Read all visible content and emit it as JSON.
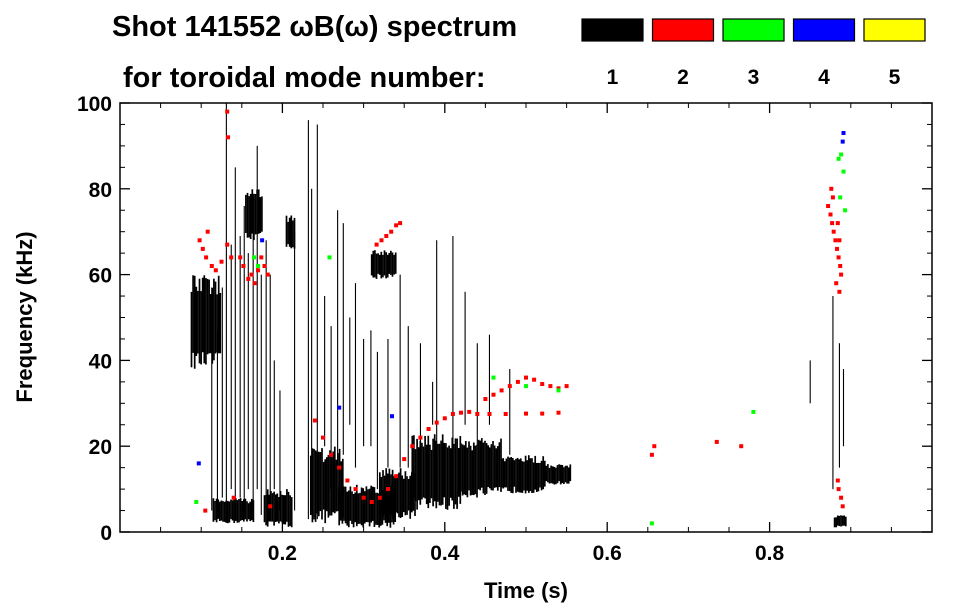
{
  "chart_data": {
    "type": "scatter",
    "title_line1": "Shot 141552 ωB(ω) spectrum",
    "title_line2": "for toroidal mode number:",
    "xlabel": "Time (s)",
    "ylabel": "Frequency (kHz)",
    "xlim": [
      0.0,
      1.0
    ],
    "ylim": [
      0,
      100
    ],
    "x_ticks": [
      0.2,
      0.4,
      0.6,
      0.8
    ],
    "x_tick_labels": [
      "0.2",
      "0.4",
      "0.6",
      "0.8"
    ],
    "y_ticks": [
      0,
      20,
      40,
      60,
      80,
      100
    ],
    "y_tick_labels": [
      "0",
      "20",
      "40",
      "60",
      "80",
      "100"
    ],
    "legend_position": "top-right",
    "legend": [
      {
        "label": "1",
        "color": "#000000"
      },
      {
        "label": "2",
        "color": "#ff0000"
      },
      {
        "label": "3",
        "color": "#00ff00"
      },
      {
        "label": "4",
        "color": "#0000ff"
      },
      {
        "label": "5",
        "color": "#ffff00"
      }
    ],
    "series": [
      {
        "name": "n=1",
        "color": "#000000",
        "blobs": [
          {
            "t0": 0.088,
            "t1": 0.125,
            "f0": 38,
            "f1": 60
          },
          {
            "t0": 0.115,
            "t1": 0.165,
            "f0": 2,
            "f1": 8
          },
          {
            "t0": 0.155,
            "t1": 0.175,
            "f0": 68,
            "f1": 80
          },
          {
            "t0": 0.205,
            "t1": 0.215,
            "f0": 66,
            "f1": 74
          },
          {
            "t0": 0.178,
            "t1": 0.212,
            "f0": 1,
            "f1": 10
          },
          {
            "t0": 0.235,
            "t1": 0.275,
            "f0": 2,
            "f1": 20
          },
          {
            "t0": 0.27,
            "t1": 0.34,
            "f0": 1,
            "f1": 11
          },
          {
            "t0": 0.32,
            "t1": 0.365,
            "f0": 3,
            "f1": 15
          },
          {
            "t0": 0.36,
            "t1": 0.42,
            "f0": 5,
            "f1": 23
          },
          {
            "t0": 0.42,
            "t1": 0.47,
            "f0": 8,
            "f1": 22
          },
          {
            "t0": 0.47,
            "t1": 0.525,
            "f0": 9,
            "f1": 18
          },
          {
            "t0": 0.525,
            "t1": 0.555,
            "f0": 11,
            "f1": 16
          },
          {
            "t0": 0.31,
            "t1": 0.34,
            "f0": 59,
            "f1": 66
          },
          {
            "t0": 0.88,
            "t1": 0.895,
            "f0": 1,
            "f1": 4
          }
        ],
        "stripes": [
          {
            "t": 0.113,
            "f0": 5,
            "f1": 57
          },
          {
            "t": 0.12,
            "f0": 3,
            "f1": 47
          },
          {
            "t": 0.126,
            "f0": 8,
            "f1": 57
          },
          {
            "t": 0.131,
            "f0": 5,
            "f1": 100
          },
          {
            "t": 0.137,
            "f0": 10,
            "f1": 67
          },
          {
            "t": 0.142,
            "f0": 5,
            "f1": 85
          },
          {
            "t": 0.148,
            "f0": 8,
            "f1": 69
          },
          {
            "t": 0.153,
            "f0": 3,
            "f1": 76
          },
          {
            "t": 0.158,
            "f0": 10,
            "f1": 65
          },
          {
            "t": 0.164,
            "f0": 5,
            "f1": 78
          },
          {
            "t": 0.169,
            "f0": 10,
            "f1": 90
          },
          {
            "t": 0.174,
            "f0": 4,
            "f1": 60
          },
          {
            "t": 0.18,
            "f0": 8,
            "f1": 68
          },
          {
            "t": 0.185,
            "f0": 3,
            "f1": 60
          },
          {
            "t": 0.19,
            "f0": 10,
            "f1": 40
          },
          {
            "t": 0.197,
            "f0": 5,
            "f1": 33
          },
          {
            "t": 0.215,
            "f0": 5,
            "f1": 70
          },
          {
            "t": 0.232,
            "f0": 3,
            "f1": 96
          },
          {
            "t": 0.236,
            "f0": 5,
            "f1": 80
          },
          {
            "t": 0.243,
            "f0": 3,
            "f1": 95
          },
          {
            "t": 0.252,
            "f0": 20,
            "f1": 55
          },
          {
            "t": 0.26,
            "f0": 10,
            "f1": 48
          },
          {
            "t": 0.268,
            "f0": 15,
            "f1": 75
          },
          {
            "t": 0.275,
            "f0": 18,
            "f1": 72
          },
          {
            "t": 0.283,
            "f0": 25,
            "f1": 50
          },
          {
            "t": 0.29,
            "f0": 15,
            "f1": 58
          },
          {
            "t": 0.3,
            "f0": 20,
            "f1": 45
          },
          {
            "t": 0.309,
            "f0": 20,
            "f1": 47
          },
          {
            "t": 0.317,
            "f0": 10,
            "f1": 42
          },
          {
            "t": 0.33,
            "f0": 15,
            "f1": 45
          },
          {
            "t": 0.345,
            "f0": 15,
            "f1": 60
          },
          {
            "t": 0.355,
            "f0": 15,
            "f1": 48
          },
          {
            "t": 0.37,
            "f0": 20,
            "f1": 44
          },
          {
            "t": 0.385,
            "f0": 25,
            "f1": 35
          },
          {
            "t": 0.39,
            "f0": 20,
            "f1": 68
          },
          {
            "t": 0.41,
            "f0": 20,
            "f1": 69
          },
          {
            "t": 0.425,
            "f0": 25,
            "f1": 56
          },
          {
            "t": 0.44,
            "f0": 20,
            "f1": 44
          },
          {
            "t": 0.455,
            "f0": 25,
            "f1": 46
          },
          {
            "t": 0.48,
            "f0": 18,
            "f1": 38
          },
          {
            "t": 0.85,
            "f0": 30,
            "f1": 40
          },
          {
            "t": 0.878,
            "f0": 10,
            "f1": 55
          },
          {
            "t": 0.886,
            "f0": 15,
            "f1": 44
          },
          {
            "t": 0.891,
            "f0": 20,
            "f1": 38
          }
        ]
      },
      {
        "name": "n=2",
        "color": "#ff0000",
        "points": [
          [
            0.098,
            68
          ],
          [
            0.102,
            66
          ],
          [
            0.106,
            64
          ],
          [
            0.108,
            70
          ],
          [
            0.113,
            62
          ],
          [
            0.118,
            61
          ],
          [
            0.125,
            63
          ],
          [
            0.132,
            67
          ],
          [
            0.137,
            64
          ],
          [
            0.132,
            98
          ],
          [
            0.133,
            92
          ],
          [
            0.148,
            64
          ],
          [
            0.152,
            62
          ],
          [
            0.158,
            59
          ],
          [
            0.162,
            60
          ],
          [
            0.166,
            58
          ],
          [
            0.17,
            61
          ],
          [
            0.174,
            64
          ],
          [
            0.178,
            62
          ],
          [
            0.182,
            60
          ],
          [
            0.105,
            5
          ],
          [
            0.14,
            8
          ],
          [
            0.185,
            6
          ],
          [
            0.24,
            26
          ],
          [
            0.25,
            22
          ],
          [
            0.26,
            18
          ],
          [
            0.27,
            15
          ],
          [
            0.28,
            12
          ],
          [
            0.29,
            10
          ],
          [
            0.3,
            8
          ],
          [
            0.31,
            7
          ],
          [
            0.32,
            8
          ],
          [
            0.33,
            10
          ],
          [
            0.34,
            13
          ],
          [
            0.35,
            17
          ],
          [
            0.36,
            20
          ],
          [
            0.37,
            22
          ],
          [
            0.38,
            24
          ],
          [
            0.39,
            25.5
          ],
          [
            0.4,
            26.5
          ],
          [
            0.41,
            27.5
          ],
          [
            0.42,
            27.8
          ],
          [
            0.43,
            28
          ],
          [
            0.44,
            27.5
          ],
          [
            0.45,
            31
          ],
          [
            0.46,
            32
          ],
          [
            0.47,
            33
          ],
          [
            0.48,
            34
          ],
          [
            0.49,
            35
          ],
          [
            0.5,
            36
          ],
          [
            0.51,
            35.5
          ],
          [
            0.52,
            34.5
          ],
          [
            0.53,
            34
          ],
          [
            0.54,
            33.5
          ],
          [
            0.55,
            34
          ],
          [
            0.455,
            27.5
          ],
          [
            0.475,
            27.5
          ],
          [
            0.5,
            27.6
          ],
          [
            0.52,
            27.6
          ],
          [
            0.54,
            27.8
          ],
          [
            0.316,
            67
          ],
          [
            0.322,
            68
          ],
          [
            0.328,
            69
          ],
          [
            0.334,
            70
          ],
          [
            0.34,
            71.5
          ],
          [
            0.345,
            72
          ],
          [
            0.655,
            18
          ],
          [
            0.658,
            20
          ],
          [
            0.735,
            21
          ],
          [
            0.765,
            20
          ],
          [
            0.872,
            76
          ],
          [
            0.875,
            74
          ],
          [
            0.877,
            72
          ],
          [
            0.879,
            70
          ],
          [
            0.881,
            68
          ],
          [
            0.883,
            66
          ],
          [
            0.885,
            64
          ],
          [
            0.887,
            62
          ],
          [
            0.888,
            60
          ],
          [
            0.878,
            78
          ],
          [
            0.876,
            80
          ],
          [
            0.884,
            72
          ],
          [
            0.886,
            68
          ],
          [
            0.882,
            58
          ],
          [
            0.886,
            56
          ],
          [
            0.885,
            10
          ],
          [
            0.888,
            8
          ],
          [
            0.89,
            6
          ],
          [
            0.884,
            12
          ]
        ]
      },
      {
        "name": "n=3",
        "color": "#00ff00",
        "points": [
          [
            0.094,
            7
          ],
          [
            0.165,
            64
          ],
          [
            0.17,
            62
          ],
          [
            0.258,
            64
          ],
          [
            0.46,
            36
          ],
          [
            0.5,
            34
          ],
          [
            0.54,
            33
          ],
          [
            0.655,
            2
          ],
          [
            0.78,
            28
          ],
          [
            0.885,
            87
          ],
          [
            0.888,
            88
          ],
          [
            0.891,
            84
          ],
          [
            0.893,
            75
          ],
          [
            0.887,
            78
          ]
        ]
      },
      {
        "name": "n=4",
        "color": "#0000ff",
        "points": [
          [
            0.097,
            16
          ],
          [
            0.175,
            68
          ],
          [
            0.27,
            29
          ],
          [
            0.335,
            27
          ],
          [
            0.89,
            91
          ],
          [
            0.891,
            93
          ]
        ]
      },
      {
        "name": "n=5",
        "color": "#ffff00",
        "points": []
      }
    ]
  }
}
